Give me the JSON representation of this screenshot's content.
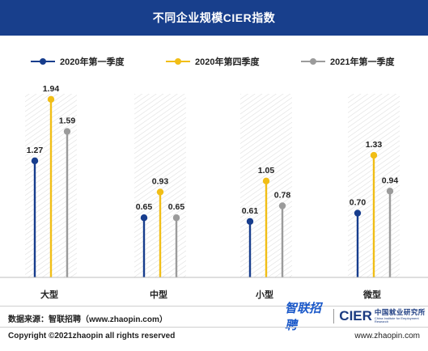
{
  "title": "不同企业规模CIER指数",
  "chart_data": {
    "type": "bar",
    "categories": [
      "大型",
      "中型",
      "小型",
      "微型"
    ],
    "series": [
      {
        "name": "2020年第一季度",
        "values": [
          1.27,
          0.65,
          0.61,
          0.7
        ]
      },
      {
        "name": "2020年第四季度",
        "values": [
          1.94,
          0.93,
          1.05,
          1.33
        ]
      },
      {
        "name": "2021年第一季度",
        "values": [
          1.59,
          0.65,
          0.78,
          0.94
        ]
      }
    ],
    "value_labels": [
      [
        "1.27",
        "0.65",
        "0.61",
        "0.70"
      ],
      [
        "1.94",
        "0.93",
        "1.05",
        "1.33"
      ],
      [
        "1.59",
        "0.65",
        "0.78",
        "0.94"
      ]
    ],
    "ylim": [
      0,
      2.3
    ],
    "legend_position": "top",
    "grid": false
  },
  "colors": {
    "title_bg": "#183f8c",
    "series": [
      "#173d8d",
      "#f1be16",
      "#9b9b9b"
    ],
    "hatch": "#d9d9d9",
    "baseline": "#bdbdbd"
  },
  "footer": {
    "source": "数据来源：智联招聘（www.zhaopin.com）",
    "brand_zhilian": "智联招聘",
    "brand_cier": "CIER",
    "brand_cier_cn": "中国就业研究所",
    "brand_cier_en": "China Institute for Employment Research",
    "copyright": "Copyright ©2021zhaopin all rights reserved",
    "website": "www.zhaopin.com"
  }
}
